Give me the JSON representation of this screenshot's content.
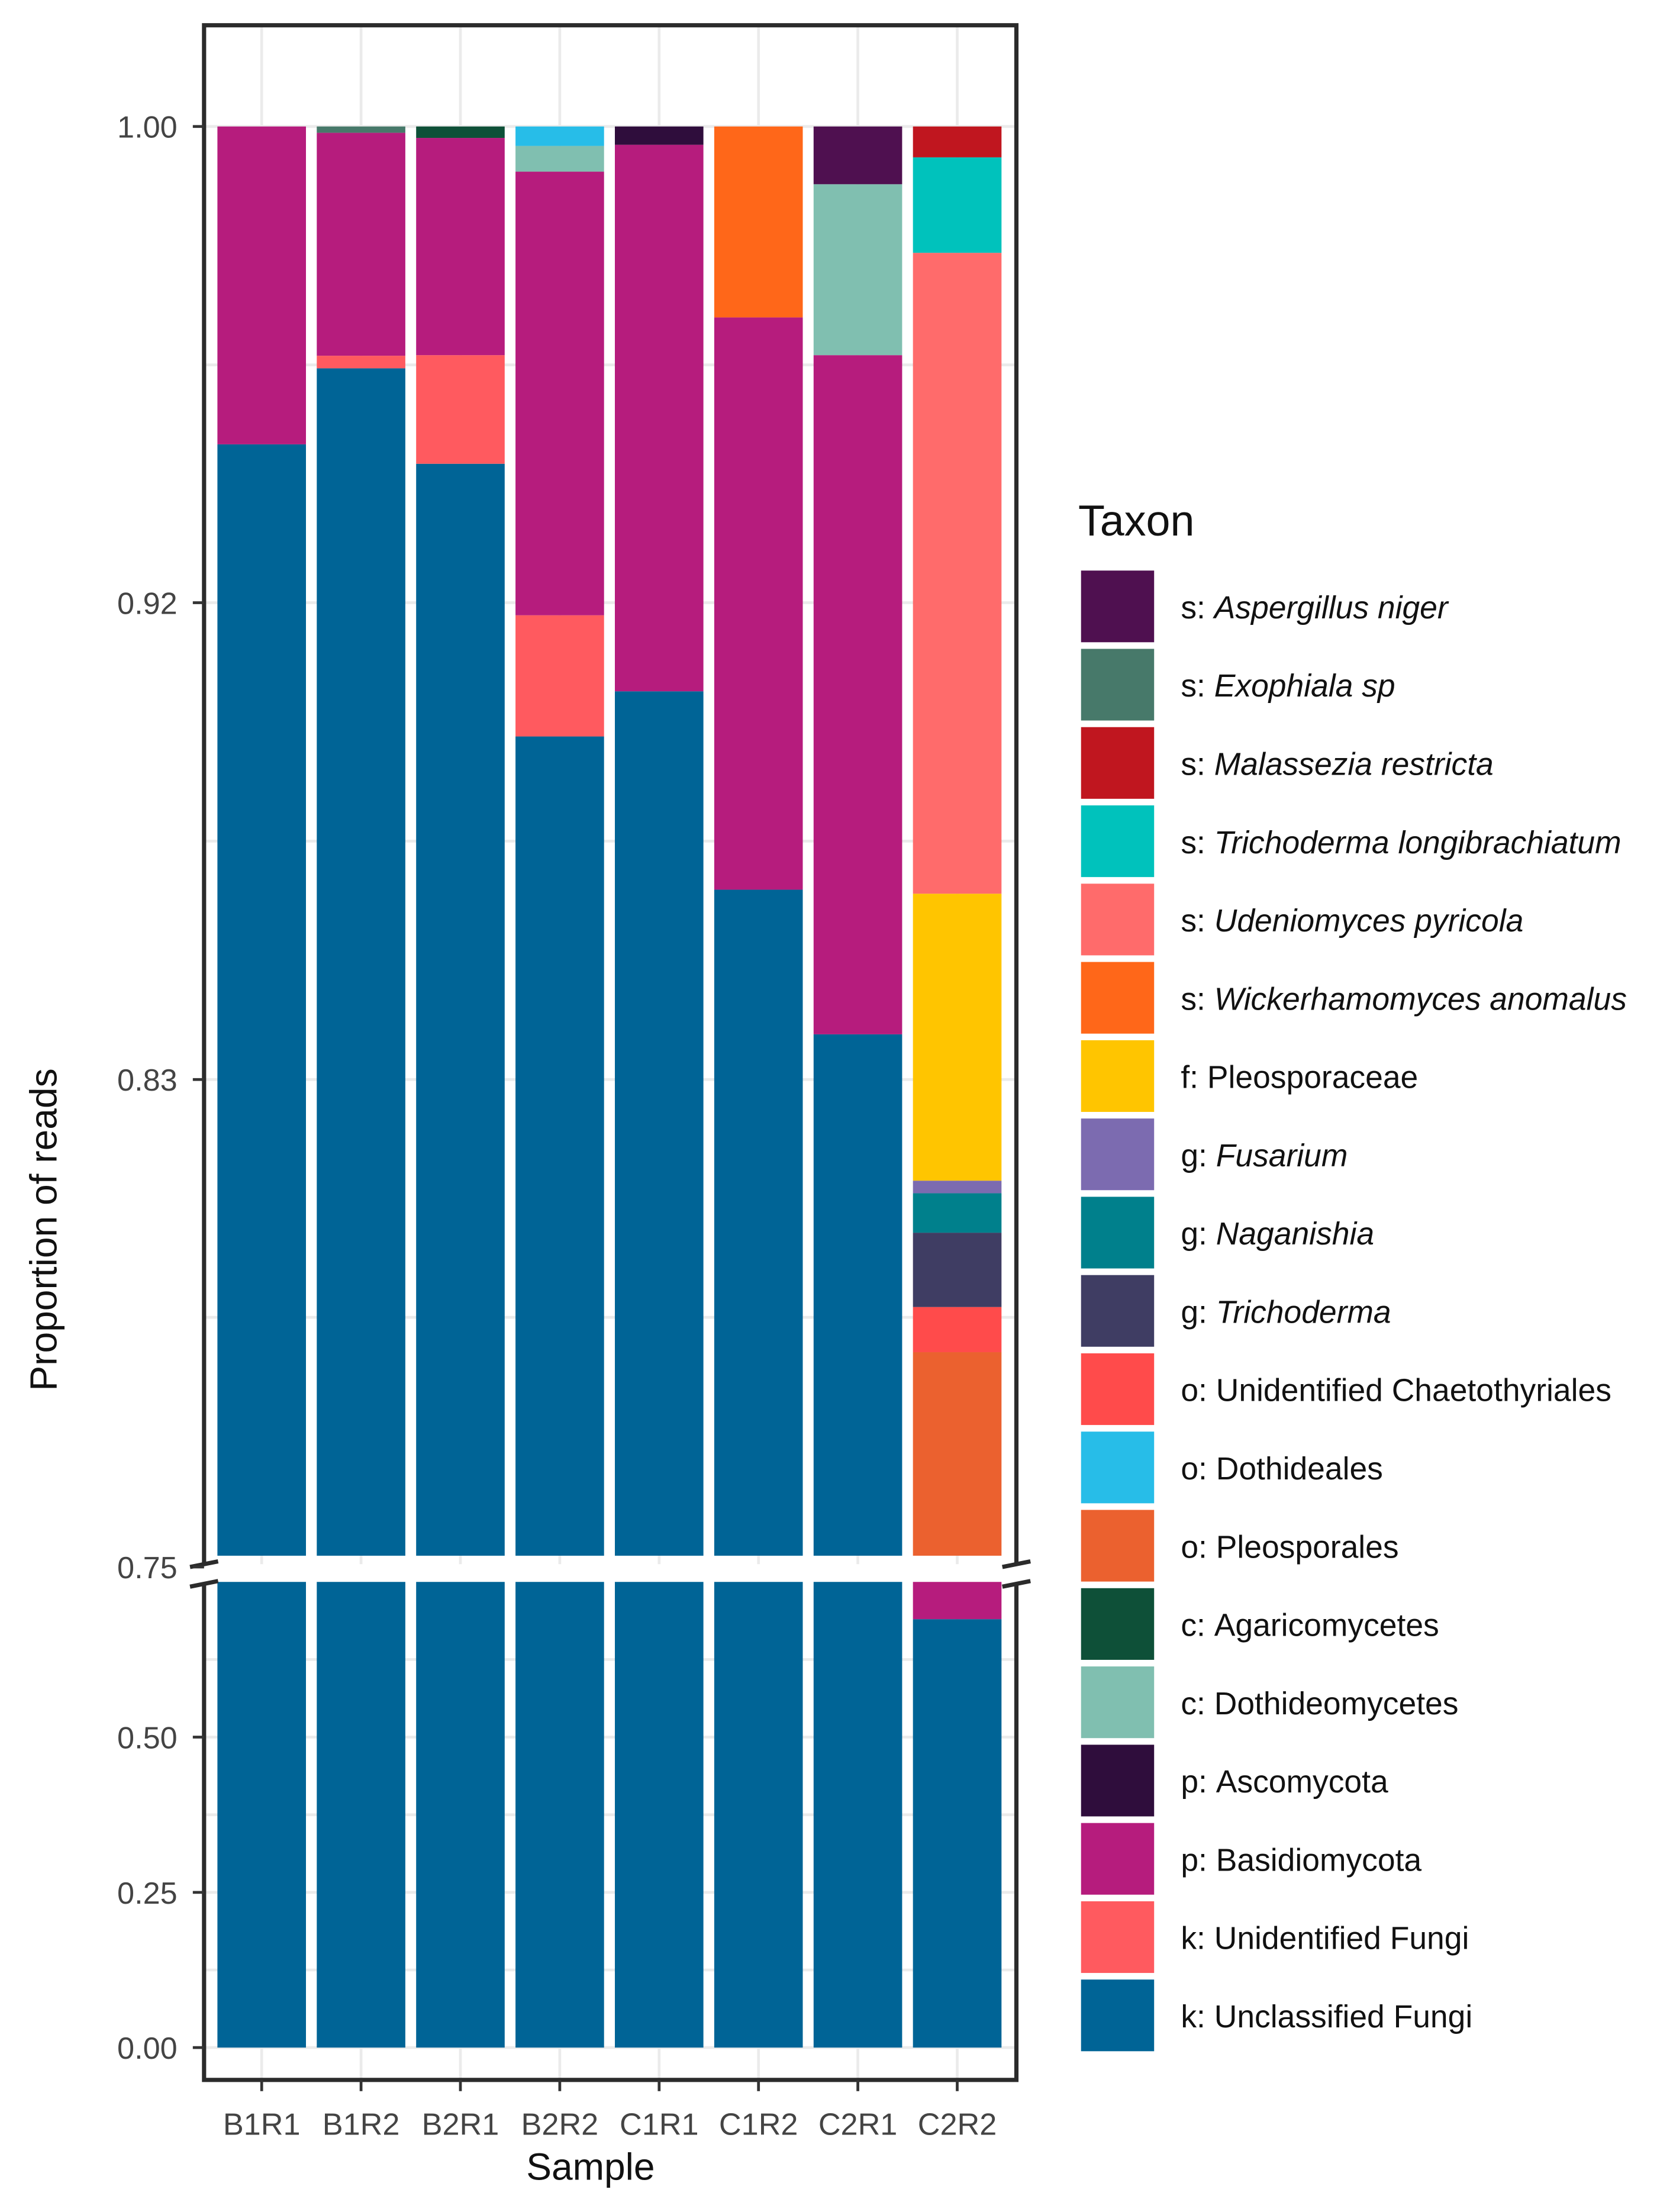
{
  "chart_data": {
    "type": "bar",
    "stacked": true,
    "xlabel": "Sample",
    "ylabel": "Proportion of reads",
    "legend_title": "Taxon",
    "legend_position": "right",
    "y_axis_break": [
      0.75,
      0.75
    ],
    "upper_ylim": [
      0.75,
      1.0
    ],
    "lower_ylim": [
      0.0,
      0.75
    ],
    "upper_ticks": [
      {
        "value": 1.0,
        "label": "1.00"
      },
      {
        "value": 0.9167,
        "label": "0.92"
      },
      {
        "value": 0.8333,
        "label": "0.83"
      },
      {
        "value": 0.75,
        "label": "0.75"
      }
    ],
    "lower_ticks": [
      {
        "value": 0.5,
        "label": "0.50"
      },
      {
        "value": 0.25,
        "label": "0.25"
      },
      {
        "value": 0.0,
        "label": "0.00"
      }
    ],
    "categories": [
      "B1R1",
      "B1R2",
      "B2R1",
      "B2R2",
      "C1R1",
      "C1R2",
      "C2R1",
      "C2R2"
    ],
    "taxa": [
      {
        "prefix": "s:",
        "name": "Aspergillus niger",
        "italic": true,
        "color": "#4f1050"
      },
      {
        "prefix": "s:",
        "name": "Exophiala sp",
        "italic": true,
        "color": "#47796a"
      },
      {
        "prefix": "s:",
        "name": "Malassezia restricta",
        "italic": true,
        "color": "#c0161f"
      },
      {
        "prefix": "s:",
        "name": "Trichoderma longibrachiatum",
        "italic": true,
        "color": "#00c2bc"
      },
      {
        "prefix": "s:",
        "name": "Udeniomyces pyricola",
        "italic": true,
        "color": "#ff6b6b"
      },
      {
        "prefix": "s:",
        "name": "Wickerhamomyces anomalus",
        "italic": true,
        "color": "#ff6719"
      },
      {
        "prefix": "f:",
        "name": "Pleosporaceae",
        "italic": false,
        "color": "#ffc500"
      },
      {
        "prefix": "g:",
        "name": "Fusarium",
        "italic": true,
        "color": "#7c6bb0"
      },
      {
        "prefix": "g:",
        "name": "Naganishia",
        "italic": true,
        "color": "#00808c"
      },
      {
        "prefix": "g:",
        "name": "Trichoderma",
        "italic": true,
        "color": "#3f3d63"
      },
      {
        "prefix": "o:",
        "name": "Unidentified Chaetothyriales",
        "italic": false,
        "color": "#ff4b4b"
      },
      {
        "prefix": "o:",
        "name": "Dothideales",
        "italic": false,
        "color": "#27bde8"
      },
      {
        "prefix": "o:",
        "name": "Pleosporales",
        "italic": false,
        "color": "#eb612f"
      },
      {
        "prefix": "c:",
        "name": "Agaricomycetes",
        "italic": false,
        "color": "#0e5038"
      },
      {
        "prefix": "c:",
        "name": "Dothideomycetes",
        "italic": false,
        "color": "#80bfb0"
      },
      {
        "prefix": "p:",
        "name": "Ascomycota",
        "italic": false,
        "color": "#2f0d3c"
      },
      {
        "prefix": "p:",
        "name": "Basidiomycota",
        "italic": false,
        "color": "#b61c7d"
      },
      {
        "prefix": "k:",
        "name": "Unidentified Fungi",
        "italic": false,
        "color": "#ff5a5f"
      },
      {
        "prefix": "k:",
        "name": "Unclassified Fungi",
        "italic": false,
        "color": "#006496"
      }
    ],
    "series": [
      {
        "name": "k: Unclassified Fungi",
        "values": [
          0.9444,
          0.9577,
          0.941,
          0.8933,
          0.9012,
          0.8665,
          0.8412,
          0.69
        ]
      },
      {
        "name": "k: Unidentified Fungi",
        "values": [
          0,
          0.0022,
          0.019,
          0.0212,
          0,
          0,
          0,
          0
        ]
      },
      {
        "name": "p: Basidiomycota",
        "values": [
          0.0556,
          0.039,
          0.038,
          0.0776,
          0.0956,
          0.1001,
          0.1188,
          0.06
        ]
      },
      {
        "name": "p: Ascomycota",
        "values": [
          0,
          0,
          0,
          0,
          0.0032,
          0,
          0,
          0
        ]
      },
      {
        "name": "c: Dothideomycetes",
        "values": [
          0,
          0,
          0,
          0.0045,
          0,
          0,
          0.0299,
          0
        ]
      },
      {
        "name": "c: Agaricomycetes",
        "values": [
          0,
          0,
          0.002,
          0,
          0,
          0,
          0,
          0
        ]
      },
      {
        "name": "o: Pleosporales",
        "values": [
          0,
          0,
          0,
          0,
          0,
          0,
          0,
          0.0356
        ]
      },
      {
        "name": "o: Dothideales",
        "values": [
          0,
          0,
          0,
          0.0034,
          0,
          0,
          0,
          0
        ]
      },
      {
        "name": "o: Unidentified Chaetothyriales",
        "values": [
          0,
          0,
          0,
          0,
          0,
          0,
          0,
          0.0079
        ]
      },
      {
        "name": "g: Trichoderma",
        "values": [
          0,
          0,
          0,
          0,
          0,
          0,
          0,
          0.013
        ]
      },
      {
        "name": "g: Naganishia",
        "values": [
          0,
          0,
          0,
          0,
          0,
          0,
          0,
          0.0069
        ]
      },
      {
        "name": "g: Fusarium",
        "values": [
          0,
          0,
          0,
          0,
          0,
          0,
          0,
          0.0022
        ]
      },
      {
        "name": "f: Pleosporaceae",
        "values": [
          0,
          0,
          0,
          0,
          0,
          0,
          0,
          0.0502
        ]
      },
      {
        "name": "s: Wickerhamomyces anomalus",
        "values": [
          0,
          0,
          0,
          0,
          0,
          0.0334,
          0,
          0
        ]
      },
      {
        "name": "s: Udeniomyces pyricola",
        "values": [
          0,
          0,
          0,
          0,
          0,
          0,
          0,
          0.1121
        ]
      },
      {
        "name": "s: Trichoderma longibrachiatum",
        "values": [
          0,
          0,
          0,
          0,
          0,
          0,
          0,
          0.0167
        ]
      },
      {
        "name": "s: Malassezia restricta",
        "values": [
          0,
          0,
          0,
          0,
          0,
          0,
          0,
          0.0054
        ]
      },
      {
        "name": "s: Exophiala sp",
        "values": [
          0,
          0.0011,
          0,
          0,
          0,
          0,
          0,
          0
        ]
      },
      {
        "name": "s: Aspergillus niger",
        "values": [
          0,
          0,
          0,
          0,
          0,
          0,
          0.0101,
          0
        ]
      }
    ]
  }
}
